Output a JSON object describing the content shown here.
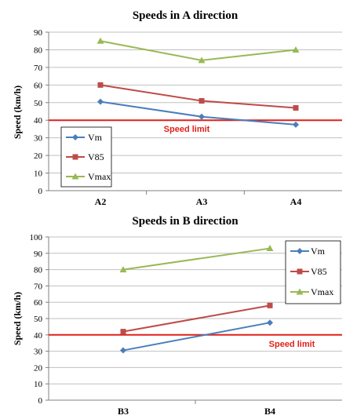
{
  "colors": {
    "vm": "#4a7ebb",
    "v85": "#be4b48",
    "vmax": "#98b954",
    "speed_limit": "#e0201b",
    "grid": "#c0c0c0",
    "axis": "#808080"
  },
  "chart_data": [
    {
      "type": "line",
      "title": "Speeds in A direction",
      "xlabel": "",
      "ylabel": "Speed (km/h)",
      "categories": [
        "A2",
        "A3",
        "A4"
      ],
      "ylim": [
        0,
        90
      ],
      "ytick_step": 10,
      "grid": true,
      "legend_position": "lower-left",
      "series": [
        {
          "name": "Vm",
          "key": "vm",
          "marker": "diamond",
          "values": [
            50.5,
            42,
            37.5
          ]
        },
        {
          "name": "V85",
          "key": "v85",
          "marker": "square",
          "values": [
            60,
            51,
            47
          ]
        },
        {
          "name": "Vmax",
          "key": "vmax",
          "marker": "triangle",
          "values": [
            85,
            74,
            80
          ]
        }
      ],
      "reference_line": {
        "value": 40,
        "label": "Speed limit"
      }
    },
    {
      "type": "line",
      "title": "Speeds in B direction",
      "xlabel": "",
      "ylabel": "Speed (km/h)",
      "categories": [
        "B3",
        "B4"
      ],
      "ylim": [
        0,
        100
      ],
      "ytick_step": 10,
      "grid": true,
      "legend_position": "top-right",
      "series": [
        {
          "name": "Vm",
          "key": "vm",
          "marker": "diamond",
          "values": [
            30.5,
            47.5
          ]
        },
        {
          "name": "V85",
          "key": "v85",
          "marker": "square",
          "values": [
            42,
            58
          ]
        },
        {
          "name": "Vmax",
          "key": "vmax",
          "marker": "triangle",
          "values": [
            80,
            93
          ]
        }
      ],
      "reference_line": {
        "value": 40,
        "label": "Speed limit"
      }
    }
  ]
}
